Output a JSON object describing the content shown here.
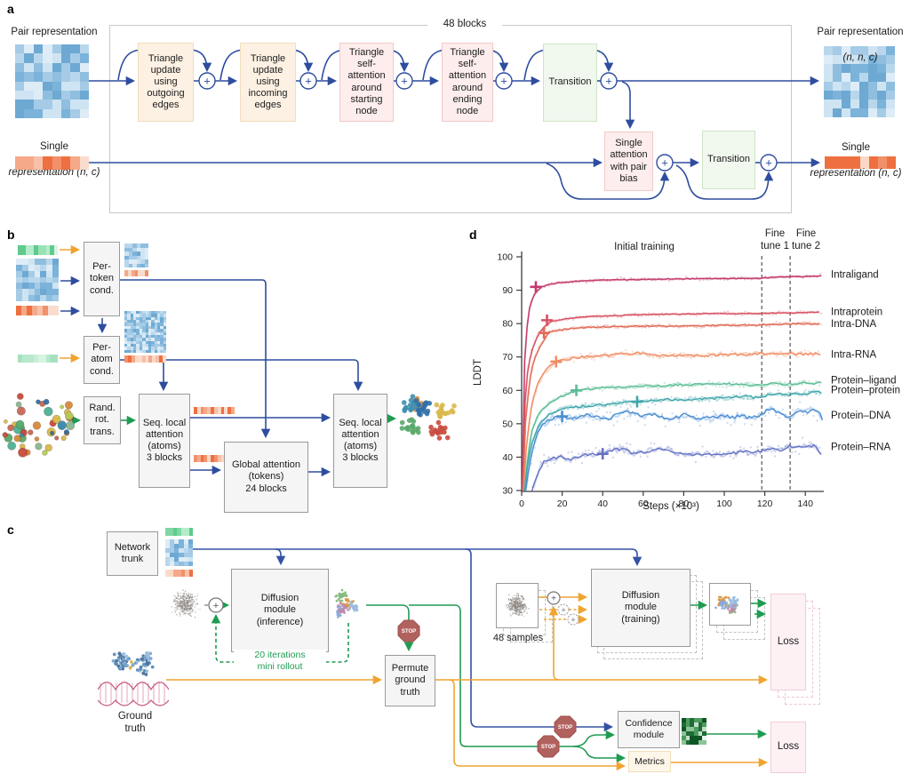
{
  "symbols": {
    "plus": "+"
  },
  "labels": {
    "a": "a",
    "b": "b",
    "c": "c",
    "d": "d"
  },
  "panel_a": {
    "blocks_label": "48 blocks",
    "pair_left_title": "Pair representation",
    "pair_left_dims": "(n, n, c)",
    "single_left_title": "Single",
    "single_left_sub": "representation (n, c)",
    "pair_right_title": "Pair representation",
    "pair_right_dims": "(n, n, c)",
    "single_right_title": "Single",
    "single_right_sub": "representation (n, c)",
    "boxes": [
      {
        "label": "Triangle\nupdate\nusing\noutgoing\nedges"
      },
      {
        "label": "Triangle\nupdate\nusing\nincoming\nedges"
      },
      {
        "label": "Triangle\nself-\nattention\naround\nstarting\nnode"
      },
      {
        "label": "Triangle\nself-\nattention\naround\nending\nnode"
      },
      {
        "label": "Transition"
      },
      {
        "label": "Single\nattention\nwith pair\nbias"
      },
      {
        "label": "Transition"
      }
    ]
  },
  "panel_b": {
    "boxes": [
      {
        "label": "Per-\ntoken\ncond."
      },
      {
        "label": "Per-\natom\ncond."
      },
      {
        "label": "Rand.\nrot.\ntrans."
      },
      {
        "label": "Seq. local\nattention\n(atoms)\n3 blocks"
      },
      {
        "label": "Global attention\n(tokens)\n24 blocks"
      },
      {
        "label": "Seq. local\nattention\n(atoms)\n3 blocks"
      }
    ]
  },
  "panel_c": {
    "network_trunk": "Network\ntrunk",
    "diffusion_inference": "Diffusion\nmodule\n(inference)",
    "rollout_label": "20 iterations\nmini rollout",
    "ground_truth": "Ground\ntruth",
    "permute": "Permute\nground\ntruth",
    "samples": "48 samples",
    "diffusion_training": "Diffusion\nmodule\n(training)",
    "loss_top": "Loss",
    "confidence": "Confidence\nmodule",
    "metrics": "Metrics",
    "loss_bottom": "Loss",
    "stop": "STOP"
  },
  "chart_data": {
    "type": "line",
    "xlabel": "Steps (×10³)",
    "ylabel": "LDDT",
    "xlim": [
      0,
      150
    ],
    "ylim": [
      30,
      100
    ],
    "xticks": [
      0,
      20,
      40,
      60,
      80,
      100,
      120,
      140
    ],
    "yticks": [
      30,
      40,
      50,
      60,
      70,
      80,
      90,
      100
    ],
    "grid": false,
    "legend_position": "right",
    "phase_labels": {
      "initial": "Initial training",
      "ft1": "Fine\ntune 1",
      "ft2": "Fine\ntune 2"
    },
    "phase_boundaries_x": [
      118.5,
      132.5
    ],
    "series": [
      {
        "name": "Intraligand",
        "color": "#c43a6e",
        "wiggle": 0.12,
        "scatter": 0.5,
        "plus": [
          7,
          91
        ],
        "label_v": 94.8,
        "points": [
          [
            0.3,
            30
          ],
          [
            1,
            62
          ],
          [
            2,
            76
          ],
          [
            4,
            85
          ],
          [
            6,
            88.5
          ],
          [
            8,
            90
          ],
          [
            10,
            91
          ],
          [
            14,
            91.8
          ],
          [
            20,
            92.3
          ],
          [
            30,
            92.8
          ],
          [
            40,
            93
          ],
          [
            60,
            93.2
          ],
          [
            80,
            93.4
          ],
          [
            100,
            93.5
          ],
          [
            118,
            93.6
          ],
          [
            125,
            93.9
          ],
          [
            133,
            94
          ],
          [
            140,
            94.1
          ],
          [
            148,
            94.2
          ]
        ]
      },
      {
        "name": "Intraprotein",
        "color": "#d85264",
        "wiggle": 0.12,
        "scatter": 0.5,
        "plus": [
          12.5,
          81
        ],
        "label_v": 83.6,
        "points": [
          [
            0.5,
            30
          ],
          [
            1.5,
            55
          ],
          [
            3,
            66
          ],
          [
            5,
            72
          ],
          [
            8,
            76.5
          ],
          [
            11,
            79
          ],
          [
            15,
            80.7
          ],
          [
            20,
            81.3
          ],
          [
            30,
            82
          ],
          [
            40,
            82.3
          ],
          [
            60,
            82.7
          ],
          [
            80,
            82.9
          ],
          [
            100,
            83
          ],
          [
            118,
            83
          ],
          [
            126,
            83.2
          ],
          [
            133,
            83.2
          ],
          [
            140,
            83.3
          ],
          [
            148,
            83.4
          ]
        ]
      },
      {
        "name": "Intra-DNA",
        "color": "#e16b58",
        "wiggle": 0.2,
        "scatter": 0.5,
        "plus": [
          11,
          77.2
        ],
        "label_v": 80.0,
        "points": [
          [
            0.7,
            30
          ],
          [
            2,
            52
          ],
          [
            4,
            63
          ],
          [
            6,
            69
          ],
          [
            9,
            73
          ],
          [
            13,
            77.2
          ],
          [
            18,
            78
          ],
          [
            25,
            78.6
          ],
          [
            40,
            79
          ],
          [
            60,
            79.2
          ],
          [
            80,
            79.2
          ],
          [
            100,
            79.5
          ],
          [
            118,
            79.6
          ],
          [
            126,
            79.8
          ],
          [
            133,
            79.9
          ],
          [
            140,
            80
          ],
          [
            148,
            80
          ]
        ]
      },
      {
        "name": "Intra-RNA",
        "color": "#f08d64",
        "wiggle": 0.35,
        "scatter": 0.8,
        "plus": [
          17,
          68.6
        ],
        "label_v": 70.8,
        "points": [
          [
            1,
            30
          ],
          [
            2.5,
            45
          ],
          [
            5,
            56
          ],
          [
            8,
            62
          ],
          [
            12,
            66
          ],
          [
            16,
            68.4
          ],
          [
            22,
            69.3
          ],
          [
            30,
            70
          ],
          [
            40,
            70.3
          ],
          [
            50,
            70.8
          ],
          [
            57,
            71.2
          ],
          [
            62,
            70.6
          ],
          [
            70,
            70.3
          ],
          [
            80,
            70.6
          ],
          [
            90,
            70.4
          ],
          [
            100,
            70.8
          ],
          [
            110,
            70.6
          ],
          [
            118,
            71
          ],
          [
            126,
            70.8
          ],
          [
            133,
            71
          ],
          [
            140,
            70.8
          ],
          [
            148,
            71
          ]
        ]
      },
      {
        "name": "Protein–ligand",
        "color": "#5cbd95",
        "wiggle": 0.3,
        "scatter": 0.8,
        "plus": [
          27,
          60
        ],
        "label_v": 63.2,
        "points": [
          [
            1.5,
            30
          ],
          [
            3,
            40
          ],
          [
            5,
            48
          ],
          [
            8,
            52.5
          ],
          [
            12,
            55.5
          ],
          [
            16,
            57
          ],
          [
            20,
            58.2
          ],
          [
            27,
            60
          ],
          [
            34,
            60.4
          ],
          [
            40,
            60.7
          ],
          [
            50,
            61
          ],
          [
            60,
            61.3
          ],
          [
            70,
            61.4
          ],
          [
            80,
            61.7
          ],
          [
            90,
            61.8
          ],
          [
            100,
            62
          ],
          [
            108,
            61.8
          ],
          [
            114,
            61.5
          ],
          [
            120,
            61.6
          ],
          [
            125,
            62.2
          ],
          [
            130,
            61.8
          ],
          [
            135,
            62
          ],
          [
            140,
            62.4
          ],
          [
            144,
            62
          ],
          [
            148,
            62.6
          ]
        ]
      },
      {
        "name": "Protein–protein",
        "color": "#3fa6ab",
        "wiggle": 0.35,
        "scatter": 0.8,
        "plus": [
          57,
          56.6
        ],
        "label_v": 60.2,
        "points": [
          [
            1.5,
            30
          ],
          [
            3,
            38
          ],
          [
            5,
            44
          ],
          [
            8,
            49
          ],
          [
            12,
            52
          ],
          [
            16,
            53.5
          ],
          [
            20,
            54.3
          ],
          [
            26,
            55
          ],
          [
            34,
            55.4
          ],
          [
            42,
            55.8
          ],
          [
            50,
            56.2
          ],
          [
            57,
            56.6
          ],
          [
            64,
            57
          ],
          [
            72,
            57.2
          ],
          [
            80,
            57.3
          ],
          [
            88,
            57.5
          ],
          [
            96,
            57.6
          ],
          [
            104,
            58
          ],
          [
            110,
            58.2
          ],
          [
            116,
            57.8
          ],
          [
            122,
            58.6
          ],
          [
            126,
            59.3
          ],
          [
            130,
            58.6
          ],
          [
            134,
            58.9
          ],
          [
            138,
            59
          ],
          [
            142,
            59.2
          ],
          [
            146,
            59.6
          ],
          [
            148,
            59.3
          ]
        ]
      },
      {
        "name": "Protein–DNA",
        "color": "#4b8ed3",
        "wiggle": 0.5,
        "scatter": 2.2,
        "plus": [
          20,
          52.2
        ],
        "label_v": 52.6,
        "points": [
          [
            2,
            30
          ],
          [
            4,
            38
          ],
          [
            6,
            44
          ],
          [
            9,
            48.5
          ],
          [
            12,
            50.5
          ],
          [
            16,
            51.8
          ],
          [
            20,
            52.3
          ],
          [
            24,
            51.6
          ],
          [
            28,
            52
          ],
          [
            32,
            52.8
          ],
          [
            36,
            52
          ],
          [
            40,
            51.4
          ],
          [
            44,
            51.8
          ],
          [
            48,
            53.3
          ],
          [
            52,
            53.6
          ],
          [
            56,
            52.8
          ],
          [
            60,
            52.4
          ],
          [
            64,
            53
          ],
          [
            68,
            52.2
          ],
          [
            72,
            51.6
          ],
          [
            76,
            51.8
          ],
          [
            80,
            52.8
          ],
          [
            84,
            52.2
          ],
          [
            88,
            51.4
          ],
          [
            92,
            51.8
          ],
          [
            96,
            52
          ],
          [
            100,
            52.4
          ],
          [
            104,
            51.8
          ],
          [
            108,
            52.6
          ],
          [
            112,
            51.8
          ],
          [
            116,
            52
          ],
          [
            120,
            53.6
          ],
          [
            124,
            54.6
          ],
          [
            127,
            53
          ],
          [
            130,
            52.2
          ],
          [
            133,
            52
          ],
          [
            136,
            53.8
          ],
          [
            139,
            53.2
          ],
          [
            142,
            53.6
          ],
          [
            145,
            54
          ],
          [
            147,
            53
          ],
          [
            149,
            51
          ]
        ]
      },
      {
        "name": "Protein–RNA",
        "color": "#6572c5",
        "wiggle": 0.45,
        "scatter": 1.8,
        "plus": [
          40,
          41
        ],
        "label_v": 43.2,
        "points": [
          [
            5,
            30
          ],
          [
            7,
            33
          ],
          [
            9,
            36.5
          ],
          [
            11,
            38.5
          ],
          [
            14,
            39.4
          ],
          [
            17,
            39.8
          ],
          [
            20,
            40
          ],
          [
            24,
            39.4
          ],
          [
            28,
            40.3
          ],
          [
            32,
            40.8
          ],
          [
            36,
            40.9
          ],
          [
            40,
            41
          ],
          [
            44,
            41.9
          ],
          [
            48,
            42.4
          ],
          [
            52,
            42.2
          ],
          [
            55,
            40.9
          ],
          [
            58,
            41.3
          ],
          [
            62,
            41.8
          ],
          [
            66,
            42.3
          ],
          [
            70,
            42.5
          ],
          [
            74,
            41.6
          ],
          [
            78,
            41
          ],
          [
            82,
            40.6
          ],
          [
            86,
            40.9
          ],
          [
            90,
            41.1
          ],
          [
            94,
            40.6
          ],
          [
            98,
            40.8
          ],
          [
            102,
            41
          ],
          [
            106,
            41.2
          ],
          [
            110,
            41.6
          ],
          [
            114,
            41
          ],
          [
            118,
            41.9
          ],
          [
            122,
            42.4
          ],
          [
            126,
            42.2
          ],
          [
            129,
            42
          ],
          [
            132,
            43.4
          ],
          [
            135,
            42.6
          ],
          [
            138,
            42.9
          ],
          [
            141,
            43.2
          ],
          [
            144,
            43.5
          ],
          [
            146,
            42.7
          ],
          [
            148,
            40.4
          ]
        ]
      }
    ]
  },
  "colors": {
    "arrow_blue": "#2e4d9f",
    "arrow_green": "#1f9b52",
    "arrow_orange": "#f0a430",
    "stop_fill": "#b2625e",
    "stop_border": "#9d504c",
    "panel_border": "#c9c9c9"
  },
  "decor": {
    "palettes": {
      "blue": [
        "#ddecf7",
        "#b9d7ec",
        "#8fbede",
        "#6da9d2",
        "#cfe4f2",
        "#a5cbe6",
        "#7bb3da"
      ],
      "orange": [
        "#f2906a",
        "#f8c0a8",
        "#fadcce",
        "#ee7040",
        "#f5a988",
        "#fbd8c6"
      ],
      "green": [
        "#7fd8a4",
        "#b4ecca",
        "#5fca8c",
        "#d9f4e4",
        "#98e2b6"
      ],
      "confgreen": [
        "#eaf4ec",
        "#c2e0c8",
        "#8cc497",
        "#4d9c5e",
        "#206c36",
        "#0f5526"
      ],
      "rainbow": [
        "#d9b84a",
        "#c94a3c",
        "#d8883c",
        "#58a86a",
        "#3f8fb0",
        "#2f6fa8",
        "#b8cc58",
        "#88b890",
        "#c86858",
        "#4fb096"
      ],
      "mix": [
        "#d8923c",
        "#8aa8d8",
        "#84b87c",
        "#c08aa8",
        "#99bbe0",
        "#b8762e"
      ],
      "proteinblue": [
        "#7da7cc",
        "#5c8cb8",
        "#9cc0dd",
        "#486f9a"
      ],
      "noise": "#8d8781",
      "dna_pink": "#c4557e",
      "gold": "#e0b040"
    }
  }
}
